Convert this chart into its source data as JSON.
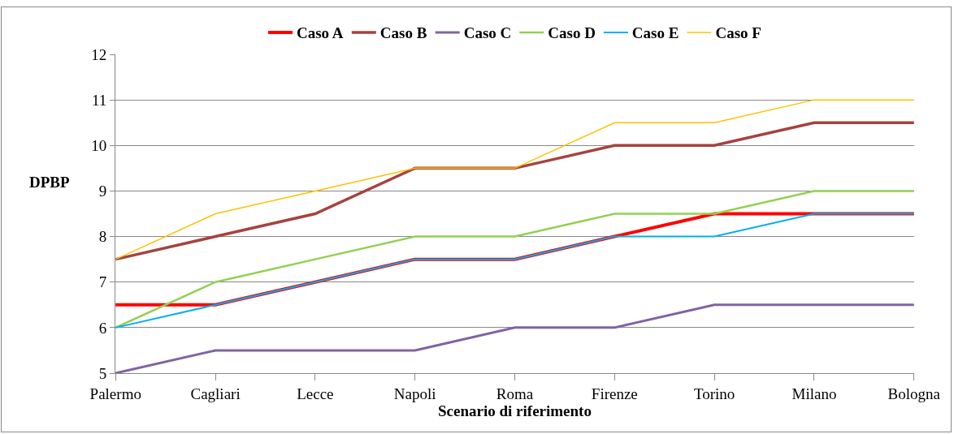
{
  "chart_data": {
    "type": "line",
    "xlabel": "Scenario di riferimento",
    "ylabel": "DPBP",
    "categories": [
      "Palermo",
      "Cagliari",
      "Lecce",
      "Napoli",
      "Roma",
      "Firenze",
      "Torino",
      "Milano",
      "Bologna"
    ],
    "series": [
      {
        "name": "Caso A",
        "color": "#ff0000",
        "values": [
          6.5,
          6.5,
          7,
          7.5,
          7.5,
          8,
          8.5,
          8.5,
          8.5
        ]
      },
      {
        "name": "Caso B",
        "color": "#a5433f",
        "values": [
          7.5,
          8,
          8.5,
          9.5,
          9.5,
          10,
          10,
          10.5,
          10.5
        ]
      },
      {
        "name": "Caso C",
        "color": "#8064a2",
        "values": [
          5,
          5.5,
          5.5,
          5.5,
          6,
          6,
          6.5,
          6.5,
          6.5
        ]
      },
      {
        "name": "Caso D",
        "color": "#92d050",
        "values": [
          6,
          7,
          7.5,
          8,
          8,
          8.5,
          8.5,
          9,
          9
        ]
      },
      {
        "name": "Caso E",
        "color": "#00b0f0",
        "values": [
          6,
          6.5,
          7,
          7.5,
          7.5,
          8,
          8,
          8.5,
          8.5
        ]
      },
      {
        "name": "Caso F",
        "color": "#ffc000",
        "values": [
          7.5,
          8.5,
          9,
          9.5,
          9.5,
          10.5,
          10.5,
          11,
          11
        ]
      }
    ],
    "ylim": [
      5,
      12
    ],
    "yticks": [
      5,
      6,
      7,
      8,
      9,
      10,
      11,
      12
    ],
    "grid": "y",
    "legend": "top",
    "marker": "none",
    "line_style": "solid"
  }
}
